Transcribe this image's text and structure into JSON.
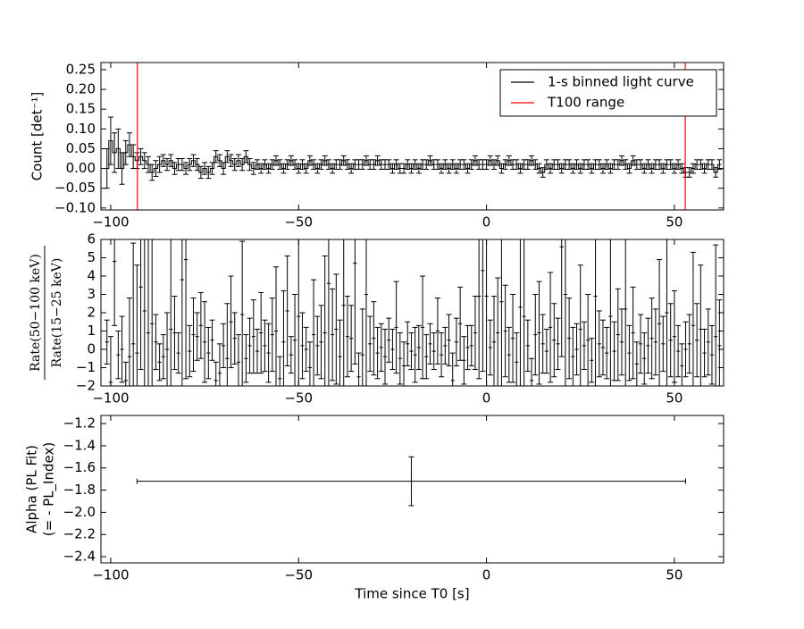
{
  "chart_data": [
    {
      "type": "step",
      "ylabel": "Count [det⁻¹]",
      "xlim": [
        -102.6,
        63.1
      ],
      "ylim": [
        -0.105,
        0.268
      ],
      "xticks": [
        {
          "value": -100,
          "label": "−100"
        },
        {
          "value": -50,
          "label": "−50"
        },
        0,
        50
      ],
      "yticks": [
        {
          "value": -0.1,
          "label": "−0.10"
        },
        {
          "value": -0.05,
          "label": "−0.05"
        },
        {
          "value": 0,
          "label": "0.00"
        },
        0.05,
        {
          "value": 0.1,
          "label": "0.10"
        },
        0.15,
        {
          "value": 0.2,
          "label": "0.20"
        },
        0.25
      ],
      "legend": "upper right",
      "x": [
        -101,
        -100,
        -99,
        -98,
        -97,
        -96,
        -95,
        -94,
        -93,
        -92,
        -91,
        -90,
        -89,
        -88,
        -87,
        -86,
        -85,
        -84,
        -83,
        -82,
        -81,
        -80,
        -79,
        -78,
        -77,
        -76,
        -75,
        -74,
        -73,
        -72,
        -71,
        -70,
        -69,
        -68,
        -67,
        -66,
        -65,
        -64,
        -63,
        -62,
        -61,
        -60,
        -59,
        -58,
        -57,
        -56,
        -55,
        -54,
        -53,
        -52,
        -51,
        -50,
        -49,
        -48,
        -47,
        -46,
        -45,
        -44,
        -43,
        -42,
        -41,
        -40,
        -39,
        -38,
        -37,
        -36,
        -35,
        -34,
        -33,
        -32,
        -31,
        -30,
        -29,
        -28,
        -27,
        -26,
        -25,
        -24,
        -23,
        -22,
        -21,
        -20,
        -19,
        -18,
        -17,
        -16,
        -15,
        -14,
        -13,
        -12,
        -11,
        -10,
        -9,
        -8,
        -7,
        -6,
        -5,
        -4,
        -3,
        -2,
        -1,
        0,
        1,
        2,
        3,
        4,
        5,
        6,
        7,
        8,
        9,
        10,
        11,
        12,
        13,
        14,
        15,
        16,
        17,
        18,
        19,
        20,
        21,
        22,
        23,
        24,
        25,
        26,
        27,
        28,
        29,
        30,
        31,
        32,
        33,
        34,
        35,
        36,
        37,
        38,
        39,
        40,
        41,
        42,
        43,
        44,
        45,
        46,
        47,
        48,
        49,
        50,
        51,
        52,
        53,
        54,
        55,
        56,
        57,
        58,
        59,
        60,
        61,
        62
      ],
      "series": [
        {
          "name": "1-s binned light curve",
          "color": "#000000",
          "values": [
            0.0,
            0.07,
            0.04,
            0.05,
            0.0,
            0.04,
            0.06,
            0.03,
            0.02,
            0.03,
            0.02,
            0.01,
            -0.01,
            0.0,
            0.01,
            0.02,
            0.01,
            0.02,
            0.0,
            0.01,
            0.01,
            0.0,
            0.01,
            0.02,
            0.01,
            -0.01,
            0.0,
            -0.01,
            0.0,
            0.03,
            0.02,
            0.0,
            0.03,
            0.02,
            0.01,
            0.02,
            0.01,
            0.03,
            0.01,
            0.0,
            0.01,
            0.0,
            0.01,
            0.0,
            0.01,
            0.02,
            0.01,
            0.0,
            0.01,
            0.02,
            0.01,
            0.0,
            0.01,
            0.0,
            0.02,
            0.01,
            0.0,
            0.01,
            0.02,
            0.01,
            0.0,
            0.01,
            0.01,
            0.02,
            0.01,
            0.0,
            0.01,
            0.01,
            0.01,
            0.02,
            0.01,
            0.01,
            0.02,
            0.01,
            0.01,
            0.01,
            0.0,
            0.01,
            0.0,
            0.0,
            0.01,
            0.0,
            0.01,
            0.0,
            0.01,
            0.01,
            0.02,
            0.01,
            0.01,
            0.0,
            0.01,
            0.0,
            0.01,
            0.0,
            0.01,
            0.01,
            0.0,
            0.01,
            0.02,
            0.01,
            0.01,
            0.01,
            0.02,
            0.01,
            0.02,
            0.0,
            0.01,
            0.02,
            0.01,
            0.01,
            0.0,
            0.01,
            0.01,
            0.02,
            0.01,
            0.0,
            -0.01,
            0.01,
            0.0,
            0.01,
            0.01,
            0.0,
            0.01,
            0.01,
            0.0,
            0.01,
            0.0,
            0.01,
            0.01,
            0.0,
            0.01,
            0.01,
            0.0,
            0.01,
            0.0,
            0.01,
            0.01,
            0.02,
            0.01,
            0.0,
            0.02,
            0.01,
            0.01,
            0.0,
            0.01,
            0.0,
            0.01,
            0.01,
            0.0,
            0.01,
            0.01,
            0.0,
            0.01,
            0.0,
            -0.01,
            -0.01,
            0.0,
            0.01,
            0.01,
            0.0,
            0.01,
            0.01,
            -0.01,
            0.01
          ],
          "errors": [
            0.05,
            0.06,
            0.05,
            0.05,
            0.04,
            0.03,
            0.03,
            0.03,
            0.02,
            0.02,
            0.02,
            0.02,
            0.02,
            0.02,
            0.02,
            0.015,
            0.015,
            0.015,
            0.015,
            0.015,
            0.015,
            0.015,
            0.015,
            0.015,
            0.015,
            0.015,
            0.015,
            0.015,
            0.015,
            0.015,
            0.015,
            0.015,
            0.015,
            0.015,
            0.015,
            0.015,
            0.015,
            0.015,
            0.015,
            0.015,
            0.012,
            0.012,
            0.012,
            0.012,
            0.012,
            0.012,
            0.012,
            0.012,
            0.012,
            0.012,
            0.012,
            0.012,
            0.012,
            0.012,
            0.012,
            0.012,
            0.012,
            0.012,
            0.012,
            0.012,
            0.012,
            0.012,
            0.012,
            0.012,
            0.012,
            0.012,
            0.012,
            0.012,
            0.012,
            0.012,
            0.012,
            0.012,
            0.012,
            0.012,
            0.012,
            0.012,
            0.012,
            0.012,
            0.012,
            0.012,
            0.012,
            0.012,
            0.012,
            0.012,
            0.012,
            0.012,
            0.012,
            0.012,
            0.012,
            0.012,
            0.012,
            0.012,
            0.012,
            0.012,
            0.012,
            0.012,
            0.012,
            0.012,
            0.012,
            0.012,
            0.012,
            0.012,
            0.012,
            0.012,
            0.012,
            0.012,
            0.012,
            0.012,
            0.012,
            0.012,
            0.012,
            0.012,
            0.012,
            0.012,
            0.012,
            0.012,
            0.012,
            0.012,
            0.012,
            0.012,
            0.012,
            0.012,
            0.012,
            0.012,
            0.012,
            0.012,
            0.012,
            0.012,
            0.012,
            0.012,
            0.012,
            0.012,
            0.012,
            0.012,
            0.012,
            0.012,
            0.012,
            0.012,
            0.012,
            0.012,
            0.012,
            0.012,
            0.012,
            0.012,
            0.012,
            0.012,
            0.012,
            0.012,
            0.012,
            0.012,
            0.012,
            0.012,
            0.012,
            0.012,
            0.012,
            0.012,
            0.012,
            0.012,
            0.012,
            0.012,
            0.012,
            0.012,
            0.012,
            0.012
          ]
        }
      ],
      "vlines": {
        "name": "T100 range",
        "color": "#ff0000",
        "values": [
          -92.9,
          52.9
        ]
      }
    },
    {
      "type": "errorbar",
      "ylabel_numerator": "Rate(50−100 keV)",
      "ylabel_denominator": "Rate(15−25 keV)",
      "xlim": [
        -102.6,
        63.1
      ],
      "ylim": [
        -2,
        6
      ],
      "xticks": [
        {
          "value": -100,
          "label": "−100"
        },
        {
          "value": -50,
          "label": "−50"
        },
        0,
        50
      ],
      "yticks": [
        {
          "value": -2,
          "label": "−2"
        },
        {
          "value": -1,
          "label": "−1"
        },
        0,
        1,
        2,
        3,
        4,
        5,
        6
      ],
      "x": [
        -101,
        -100,
        -99,
        -98,
        -97,
        -96,
        -95,
        -94,
        -93,
        -92,
        -91,
        -90,
        -89,
        -88,
        -87,
        -86,
        -85,
        -84,
        -83,
        -82,
        -81,
        -80,
        -79,
        -78,
        -77,
        -76,
        -75,
        -74,
        -73,
        -72,
        -71,
        -70,
        -69,
        -68,
        -67,
        -66,
        -65,
        -64,
        -63,
        -62,
        -61,
        -60,
        -59,
        -58,
        -57,
        -56,
        -55,
        -54,
        -53,
        -52,
        -51,
        -50,
        -49,
        -48,
        -47,
        -46,
        -45,
        -44,
        -43,
        -42,
        -41,
        -40,
        -39,
        -38,
        -37,
        -36,
        -35,
        -34,
        -33,
        -32,
        -31,
        -30,
        -29,
        -28,
        -27,
        -26,
        -25,
        -24,
        -23,
        -22,
        -21,
        -20,
        -19,
        -18,
        -17,
        -16,
        -15,
        -14,
        -13,
        -12,
        -11,
        -10,
        -9,
        -8,
        -7,
        -6,
        -5,
        -4,
        -3,
        -2,
        -1,
        0,
        1,
        2,
        3,
        4,
        5,
        6,
        7,
        8,
        9,
        10,
        11,
        12,
        13,
        14,
        15,
        16,
        17,
        18,
        19,
        20,
        21,
        22,
        23,
        24,
        25,
        26,
        27,
        28,
        29,
        30,
        31,
        32,
        33,
        34,
        35,
        36,
        37,
        38,
        39,
        40,
        41,
        42,
        43,
        44,
        45,
        46,
        47,
        48,
        49,
        50,
        51,
        52,
        53,
        54,
        55,
        56,
        57,
        58,
        59,
        60,
        61,
        62
      ],
      "series": [
        {
          "color": "#000000",
          "values": [
            0.4,
            -1.8,
            4.8,
            -0.3,
            0.0,
            -1.7,
            -0.4,
            0.3,
            -0.2,
            3.4,
            2.1,
            0.9,
            1.4,
            0.4,
            -0.7,
            -0.4,
            0.0,
            1.1,
            0.9,
            -0.2,
            3.8,
            4.9,
            -0.1,
            0.8,
            0.7,
            1.3,
            0.4,
            -0.2,
            0.5,
            -1.7,
            -1.3,
            0.2,
            -0.5,
            1.5,
            0.6,
            -0.7,
            1.9,
            -0.5,
            0.2,
            0.7,
            -0.1,
            0.9,
            0.2,
            -0.2,
            0.8,
            1.0,
            -1.6,
            0.4,
            2.1,
            -0.3,
            0.5,
            1.8,
            0.2,
            0.0,
            -1.0,
            0.8,
            0.2,
            0.4,
            0.9,
            3.6,
            0.8,
            1.1,
            -0.4,
            2.4,
            0.7,
            0.6,
            4.7,
            -1.5,
            -0.3,
            3.0,
            0.3,
            0.6,
            -0.2,
            0.1,
            -0.4,
            0.5,
            0.0,
            1.2,
            -0.5,
            -0.9,
            0.3,
            -0.1,
            -0.3,
            0.1,
            1.2,
            -0.4,
            0.3,
            -0.1,
            1.0,
            -0.3,
            0.2,
            0.5,
            -1.7,
            0.4,
            1.4,
            -0.6,
            0.1,
            0.2,
            0.9,
            2.9,
            4.3,
            2.9,
            0.1,
            0.4,
            0.9,
            2.6,
            1.0,
            -0.3,
            0.6,
            -0.7,
            2.3,
            1.8,
            0.2,
            -1.7,
            0.8,
            0.9,
            0.3,
            -0.1,
            1.2,
            0.5,
            0.3,
            5.6,
            3.0,
            0.6,
            -0.4,
            0.0,
            1.1,
            0.2,
            0.5,
            -0.6,
            2.9,
            0.3,
            0.1,
            -0.2,
            1.8,
            -0.1,
            0.8,
            0.4,
            2.2,
            -0.2,
            0.9,
            -0.8,
            0.3,
            -0.5,
            0.2,
            0.6,
            0.4,
            1.4,
            0.3,
            2.0,
            0.5,
            0.7,
            -0.1,
            -0.9,
            0.0,
            0.3,
            1.3,
            0.5,
            1.1,
            -0.2,
            0.4,
            -0.3,
            0.7,
            0.2
          ],
          "errors": [
            1.2,
            2.5,
            3.5,
            1.3,
            1.8,
            1.0,
            3.2,
            5.5,
            4.8,
            4.5,
            6.0,
            5.5,
            7.0,
            1.5,
            1.0,
            1.2,
            2.0,
            6.5,
            2.0,
            1.1,
            6.0,
            6.5,
            1.4,
            2.0,
            1.3,
            1.8,
            2.2,
            1.4,
            1.1,
            1.0,
            1.6,
            1.2,
            3.0,
            2.5,
            1.4,
            1.5,
            4.0,
            1.3,
            1.5,
            2.0,
            1.2,
            2.2,
            1.4,
            1.6,
            2.0,
            3.5,
            1.2,
            2.8,
            3.0,
            1.0,
            2.5,
            4.5,
            1.8,
            1.2,
            1.4,
            3.0,
            1.6,
            2.0,
            4.2,
            6.0,
            2.5,
            3.0,
            2.0,
            4.5,
            2.2,
            1.8,
            5.5,
            1.3,
            2.5,
            6.0,
            1.5,
            2.0,
            1.4,
            1.3,
            1.5,
            1.2,
            1.1,
            2.5,
            1.4,
            1.3,
            1.2,
            1.0,
            1.5,
            1.2,
            2.8,
            1.2,
            1.1,
            1.0,
            1.8,
            1.2,
            1.0,
            1.4,
            1.5,
            1.3,
            2.0,
            1.3,
            1.2,
            1.1,
            2.0,
            4.5,
            5.5,
            6.0,
            1.5,
            2.5,
            3.0,
            5.0,
            2.5,
            1.5,
            2.4,
            1.6,
            5.0,
            4.5,
            1.4,
            1.2,
            2.2,
            2.8,
            1.6,
            1.2,
            3.0,
            2.0,
            1.4,
            6.0,
            6.0,
            2.2,
            1.6,
            1.4,
            3.5,
            1.3,
            2.5,
            1.2,
            6.0,
            1.8,
            1.5,
            1.4,
            4.5,
            1.6,
            2.5,
            1.8,
            4.5,
            1.5,
            2.5,
            1.2,
            1.6,
            1.4,
            1.5,
            2.2,
            1.8,
            3.5,
            1.5,
            5.5,
            2.0,
            2.5,
            1.4,
            1.2,
            1.5,
            1.6,
            4.0,
            2.0,
            3.5,
            1.3,
            1.8,
            1.6,
            5.0,
            2.5
          ]
        }
      ]
    },
    {
      "type": "errorbar",
      "ylabel": [
        "Alpha (PL Fit)",
        "(= - PL_Index)"
      ],
      "xlabel": "Time since T0 [s]",
      "xlim": [
        -102.6,
        63.1
      ],
      "ylim": [
        -2.456,
        -1.127
      ],
      "xticks": [
        {
          "value": -100,
          "label": "−100"
        },
        {
          "value": -50,
          "label": "−50"
        },
        0,
        50
      ],
      "yticks": [
        {
          "value": -2.4,
          "label": "−2.4"
        },
        {
          "value": -2.2,
          "label": "−2.2"
        },
        {
          "value": -2.0,
          "label": "−2.0"
        },
        {
          "value": -1.8,
          "label": "−1.8"
        },
        {
          "value": -1.6,
          "label": "−1.6"
        },
        {
          "value": -1.4,
          "label": "−1.4"
        },
        {
          "value": -1.2,
          "label": "−1.2"
        }
      ],
      "x": [
        -20
      ],
      "series": [
        {
          "color": "#000000",
          "values": [
            -1.72
          ],
          "errors": [
            0.22
          ],
          "xerrors": [
            73
          ]
        }
      ]
    }
  ]
}
